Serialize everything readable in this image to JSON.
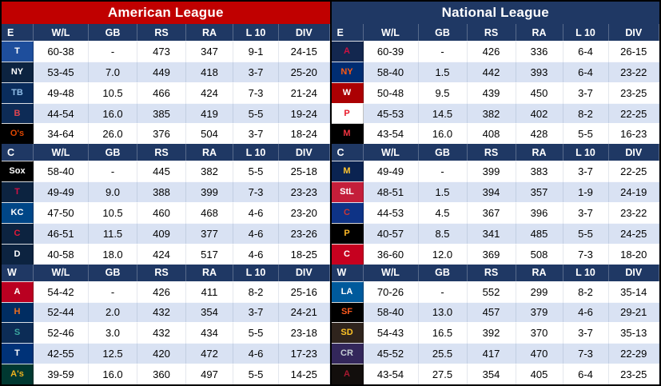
{
  "theme": {
    "al_accent": "#C00000",
    "nl_accent": "#1F3864",
    "division_header_bg": "#1F3864",
    "row_bg": "#FFFFFF",
    "row_alt_bg": "#D9E2F3",
    "header_text": "#FFFFFF",
    "text_color": "#000000"
  },
  "columns": [
    "W/L",
    "GB",
    "RS",
    "RA",
    "L 10",
    "DIV"
  ],
  "chart_data": [
    {
      "type": "table",
      "title": "American League",
      "accent": "#C00000",
      "divisions": [
        {
          "label": "E",
          "teams": [
            {
              "id": "blue-jays",
              "logo": "T",
              "logo_bg": "#1E4E9C",
              "logo_fg": "#FFFFFF",
              "wl": "60-38",
              "gb": "-",
              "rs": "473",
              "ra": "347",
              "l10": "9-1",
              "div": "24-15"
            },
            {
              "id": "yankees",
              "logo": "NY",
              "logo_bg": "#0C2340",
              "logo_fg": "#FFFFFF",
              "wl": "53-45",
              "gb": "7.0",
              "rs": "449",
              "ra": "418",
              "l10": "3-7",
              "div": "25-20"
            },
            {
              "id": "rays",
              "logo": "TB",
              "logo_bg": "#092C5C",
              "logo_fg": "#8FBCE6",
              "wl": "49-48",
              "gb": "10.5",
              "rs": "466",
              "ra": "424",
              "l10": "7-3",
              "div": "21-24"
            },
            {
              "id": "red-sox",
              "logo": "B",
              "logo_bg": "#0D2B56",
              "logo_fg": "#E04550",
              "wl": "44-54",
              "gb": "16.0",
              "rs": "385",
              "ra": "419",
              "l10": "5-5",
              "div": "19-24"
            },
            {
              "id": "orioles",
              "logo": "O's",
              "logo_bg": "#000000",
              "logo_fg": "#DF4601",
              "wl": "34-64",
              "gb": "26.0",
              "rs": "376",
              "ra": "504",
              "l10": "3-7",
              "div": "18-24"
            }
          ]
        },
        {
          "label": "C",
          "teams": [
            {
              "id": "white-sox",
              "logo": "Sox",
              "logo_bg": "#000000",
              "logo_fg": "#FFFFFF",
              "wl": "58-40",
              "gb": "-",
              "rs": "445",
              "ra": "382",
              "l10": "5-5",
              "div": "25-18"
            },
            {
              "id": "twins",
              "logo": "T",
              "logo_bg": "#0C2340",
              "logo_fg": "#D31145",
              "wl": "49-49",
              "gb": "9.0",
              "rs": "388",
              "ra": "399",
              "l10": "7-3",
              "div": "23-23"
            },
            {
              "id": "royals",
              "logo": "KC",
              "logo_bg": "#004687",
              "logo_fg": "#FFFFFF",
              "wl": "47-50",
              "gb": "10.5",
              "rs": "460",
              "ra": "468",
              "l10": "4-6",
              "div": "23-20"
            },
            {
              "id": "guardians",
              "logo": "C",
              "logo_bg": "#0C2340",
              "logo_fg": "#E31937",
              "wl": "46-51",
              "gb": "11.5",
              "rs": "409",
              "ra": "377",
              "l10": "4-6",
              "div": "23-26"
            },
            {
              "id": "tigers",
              "logo": "D",
              "logo_bg": "#0C2340",
              "logo_fg": "#FFFFFF",
              "wl": "40-58",
              "gb": "18.0",
              "rs": "424",
              "ra": "517",
              "l10": "4-6",
              "div": "18-25"
            }
          ]
        },
        {
          "label": "W",
          "teams": [
            {
              "id": "angels",
              "logo": "A",
              "logo_bg": "#BA0021",
              "logo_fg": "#FFFFFF",
              "wl": "54-42",
              "gb": "-",
              "rs": "426",
              "ra": "411",
              "l10": "8-2",
              "div": "25-16"
            },
            {
              "id": "astros",
              "logo": "H",
              "logo_bg": "#002D62",
              "logo_fg": "#EB6E1F",
              "wl": "52-44",
              "gb": "2.0",
              "rs": "432",
              "ra": "354",
              "l10": "3-7",
              "div": "24-21"
            },
            {
              "id": "mariners",
              "logo": "S",
              "logo_bg": "#0C2C56",
              "logo_fg": "#3BA8A0",
              "wl": "52-46",
              "gb": "3.0",
              "rs": "432",
              "ra": "434",
              "l10": "5-5",
              "div": "23-18"
            },
            {
              "id": "rangers",
              "logo": "T",
              "logo_bg": "#003278",
              "logo_fg": "#FFFFFF",
              "wl": "42-55",
              "gb": "12.5",
              "rs": "420",
              "ra": "472",
              "l10": "4-6",
              "div": "17-23"
            },
            {
              "id": "athletics",
              "logo": "A's",
              "logo_bg": "#003831",
              "logo_fg": "#EFB21E",
              "wl": "39-59",
              "gb": "16.0",
              "rs": "360",
              "ra": "497",
              "l10": "5-5",
              "div": "14-25"
            }
          ]
        }
      ]
    },
    {
      "type": "table",
      "title": "National League",
      "accent": "#1F3864",
      "divisions": [
        {
          "label": "E",
          "teams": [
            {
              "id": "braves",
              "logo": "A",
              "logo_bg": "#13274F",
              "logo_fg": "#CE1141",
              "wl": "60-39",
              "gb": "-",
              "rs": "426",
              "ra": "336",
              "l10": "6-4",
              "div": "26-15"
            },
            {
              "id": "mets",
              "logo": "NY",
              "logo_bg": "#002D72",
              "logo_fg": "#FF5910",
              "wl": "58-40",
              "gb": "1.5",
              "rs": "442",
              "ra": "393",
              "l10": "6-4",
              "div": "23-22"
            },
            {
              "id": "nationals",
              "logo": "W",
              "logo_bg": "#AB0003",
              "logo_fg": "#FFFFFF",
              "wl": "50-48",
              "gb": "9.5",
              "rs": "439",
              "ra": "450",
              "l10": "3-7",
              "div": "23-25"
            },
            {
              "id": "phillies",
              "logo": "P",
              "logo_bg": "#FFFFFF",
              "logo_fg": "#E81828",
              "wl": "45-53",
              "gb": "14.5",
              "rs": "382",
              "ra": "402",
              "l10": "8-2",
              "div": "22-25"
            },
            {
              "id": "marlins",
              "logo": "M",
              "logo_bg": "#000000",
              "logo_fg": "#EF3340",
              "wl": "43-54",
              "gb": "16.0",
              "rs": "408",
              "ra": "428",
              "l10": "5-5",
              "div": "16-23"
            }
          ]
        },
        {
          "label": "C",
          "teams": [
            {
              "id": "brewers",
              "logo": "M",
              "logo_bg": "#0A2351",
              "logo_fg": "#FFC52F",
              "wl": "49-49",
              "gb": "-",
              "rs": "399",
              "ra": "383",
              "l10": "3-7",
              "div": "22-25"
            },
            {
              "id": "cardinals",
              "logo": "StL",
              "logo_bg": "#C41E3A",
              "logo_fg": "#FFFFFF",
              "wl": "48-51",
              "gb": "1.5",
              "rs": "394",
              "ra": "357",
              "l10": "1-9",
              "div": "24-19"
            },
            {
              "id": "cubs",
              "logo": "C",
              "logo_bg": "#0E3386",
              "logo_fg": "#CC3433",
              "wl": "44-53",
              "gb": "4.5",
              "rs": "367",
              "ra": "396",
              "l10": "3-7",
              "div": "23-22"
            },
            {
              "id": "pirates",
              "logo": "P",
              "logo_bg": "#000000",
              "logo_fg": "#FDB827",
              "wl": "40-57",
              "gb": "8.5",
              "rs": "341",
              "ra": "485",
              "l10": "5-5",
              "div": "24-25"
            },
            {
              "id": "reds",
              "logo": "C",
              "logo_bg": "#C6011F",
              "logo_fg": "#FFFFFF",
              "wl": "36-60",
              "gb": "12.0",
              "rs": "369",
              "ra": "508",
              "l10": "7-3",
              "div": "18-20"
            }
          ]
        },
        {
          "label": "W",
          "teams": [
            {
              "id": "dodgers",
              "logo": "LA",
              "logo_bg": "#005A9C",
              "logo_fg": "#FFFFFF",
              "wl": "70-26",
              "gb": "-",
              "rs": "552",
              "ra": "299",
              "l10": "8-2",
              "div": "35-14"
            },
            {
              "id": "giants",
              "logo": "SF",
              "logo_bg": "#000000",
              "logo_fg": "#FD5A1E",
              "wl": "58-40",
              "gb": "13.0",
              "rs": "457",
              "ra": "379",
              "l10": "4-6",
              "div": "29-21"
            },
            {
              "id": "padres",
              "logo": "SD",
              "logo_bg": "#2F241D",
              "logo_fg": "#FFC425",
              "wl": "54-43",
              "gb": "16.5",
              "rs": "392",
              "ra": "370",
              "l10": "3-7",
              "div": "35-13"
            },
            {
              "id": "rockies",
              "logo": "CR",
              "logo_bg": "#33275B",
              "logo_fg": "#C4CED4",
              "wl": "45-52",
              "gb": "25.5",
              "rs": "417",
              "ra": "470",
              "l10": "7-3",
              "div": "22-29"
            },
            {
              "id": "diamondbacks",
              "logo": "A",
              "logo_bg": "#120E0C",
              "logo_fg": "#A71930",
              "wl": "43-54",
              "gb": "27.5",
              "rs": "354",
              "ra": "405",
              "l10": "6-4",
              "div": "23-25"
            }
          ]
        }
      ]
    }
  ]
}
